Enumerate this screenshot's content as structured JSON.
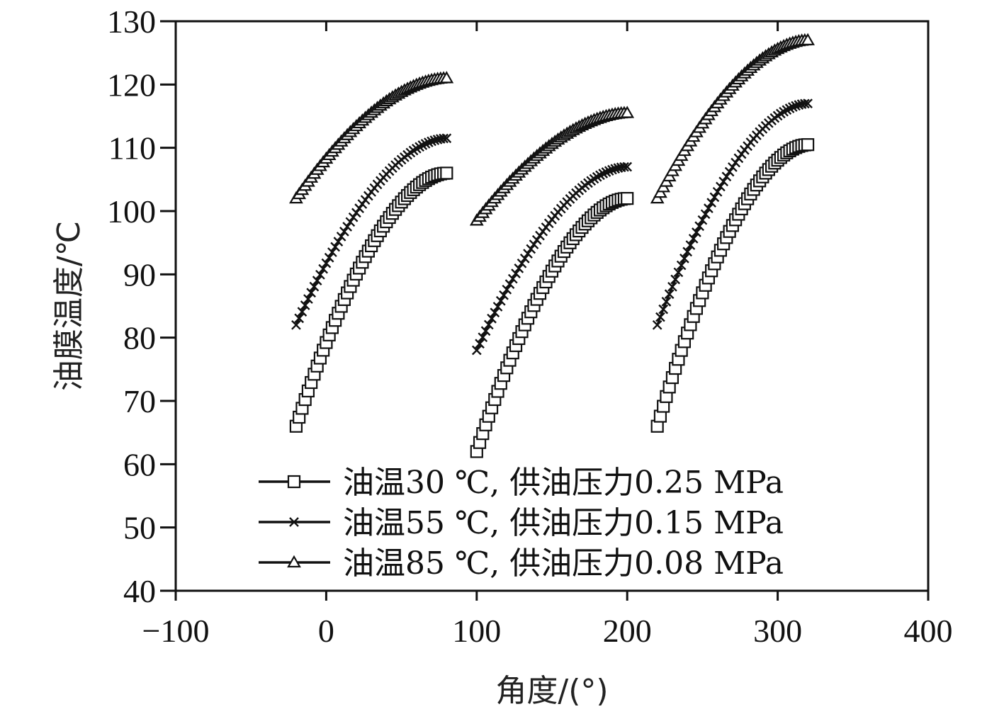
{
  "chart_data": {
    "type": "line",
    "xlabel": "角度/(°)",
    "ylabel": "油膜温度/℃",
    "xlim": [
      -100,
      400
    ],
    "ylim": [
      40,
      130
    ],
    "xticks": [
      -100,
      0,
      100,
      200,
      300,
      400
    ],
    "yticks": [
      40,
      50,
      60,
      70,
      80,
      90,
      100,
      110,
      120,
      130
    ],
    "xtick_labels": [
      "−100",
      "0",
      "100",
      "200",
      "300",
      "400"
    ],
    "ytick_labels": [
      "40",
      "50",
      "60",
      "70",
      "80",
      "90",
      "100",
      "110",
      "120",
      "130"
    ],
    "grid": false,
    "legend_position": "bottom-center",
    "series": [
      {
        "name": "油温30 ℃, 供油压力0.25 MPa",
        "marker": "square",
        "segments": [
          {
            "x_start": -20,
            "x_end": 80,
            "y_start": 66,
            "y_end": 106
          },
          {
            "x_start": 100,
            "x_end": 200,
            "y_start": 62,
            "y_end": 102
          },
          {
            "x_start": 220,
            "x_end": 320,
            "y_start": 66,
            "y_end": 110.5
          }
        ]
      },
      {
        "name": "油温55 ℃, 供油压力0.15 MPa",
        "marker": "x",
        "segments": [
          {
            "x_start": -20,
            "x_end": 80,
            "y_start": 82,
            "y_end": 111.5
          },
          {
            "x_start": 100,
            "x_end": 200,
            "y_start": 78,
            "y_end": 107
          },
          {
            "x_start": 220,
            "x_end": 320,
            "y_start": 82,
            "y_end": 117
          }
        ]
      },
      {
        "name": "油温85 ℃, 供油压力0.08 MPa",
        "marker": "triangle",
        "segments": [
          {
            "x_start": -20,
            "x_end": 80,
            "y_start": 102,
            "y_end": 121
          },
          {
            "x_start": 100,
            "x_end": 200,
            "y_start": 98.5,
            "y_end": 115.5
          },
          {
            "x_start": 220,
            "x_end": 320,
            "y_start": 102,
            "y_end": 127
          }
        ]
      }
    ]
  }
}
